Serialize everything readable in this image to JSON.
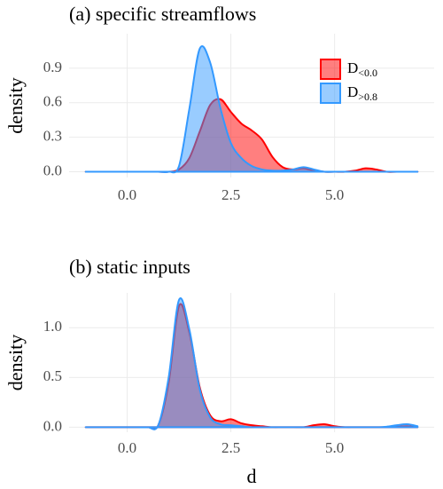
{
  "chart_data": [
    {
      "type": "density",
      "title": "(a) specific streamflows",
      "y_label": "density",
      "xlim": [
        -1.4,
        7.4
      ],
      "xticks": [
        {
          "value": 0,
          "label": "0.0"
        },
        {
          "value": 2.5,
          "label": "2.5"
        },
        {
          "value": 5,
          "label": "5.0"
        }
      ],
      "ylim": [
        -0.05,
        1.2
      ],
      "yticks": [
        {
          "value": 0,
          "label": "0.0"
        },
        {
          "value": 0.3,
          "label": "0.3"
        },
        {
          "value": 0.6,
          "label": "0.6"
        },
        {
          "value": 0.9,
          "label": "0.9"
        }
      ],
      "grid": true,
      "legend": "top-right",
      "x": [
        -1,
        -0.75,
        -0.5,
        -0.25,
        0,
        0.25,
        0.5,
        0.75,
        1,
        1.25,
        1.5,
        1.75,
        2,
        2.25,
        2.5,
        2.75,
        3,
        3.25,
        3.5,
        3.75,
        4,
        4.25,
        4.5,
        4.75,
        5,
        5.25,
        5.5,
        5.75,
        6,
        6.25,
        6.5,
        6.75,
        7
      ],
      "series": [
        {
          "name": "D",
          "name_sub": "<0.0",
          "color": "#ff0000",
          "values": [
            0,
            0,
            0,
            0,
            0,
            0,
            0,
            0,
            0,
            0.02,
            0.12,
            0.35,
            0.58,
            0.63,
            0.52,
            0.42,
            0.36,
            0.28,
            0.13,
            0.04,
            0.02,
            0.03,
            0.01,
            0,
            0,
            0,
            0.01,
            0.03,
            0.02,
            0,
            0,
            0,
            0
          ]
        },
        {
          "name": "D",
          "name_sub": ">0.8",
          "color": "#3399ff",
          "values": [
            0,
            0,
            0,
            0,
            0,
            0,
            0,
            0,
            0,
            0.05,
            0.55,
            1.07,
            0.95,
            0.55,
            0.25,
            0.12,
            0.05,
            0.02,
            0.01,
            0.01,
            0.02,
            0.04,
            0.02,
            0,
            0,
            0,
            0,
            0,
            0,
            0,
            0,
            0,
            0
          ]
        }
      ]
    },
    {
      "type": "density",
      "title": "(b) static inputs",
      "y_label": "density",
      "x_label": "d",
      "xlim": [
        -1.4,
        7.4
      ],
      "xticks": [
        {
          "value": 0,
          "label": "0.0"
        },
        {
          "value": 2.5,
          "label": "2.5"
        },
        {
          "value": 5,
          "label": "5.0"
        }
      ],
      "ylim": [
        -0.05,
        1.35
      ],
      "yticks": [
        {
          "value": 0,
          "label": "0.0"
        },
        {
          "value": 0.5,
          "label": "0.5"
        },
        {
          "value": 1,
          "label": "1.0"
        }
      ],
      "grid": true,
      "x": [
        -1,
        -0.75,
        -0.5,
        -0.25,
        0,
        0.25,
        0.5,
        0.75,
        1,
        1.25,
        1.5,
        1.75,
        2,
        2.25,
        2.5,
        2.75,
        3,
        3.25,
        3.5,
        3.75,
        4,
        4.25,
        4.5,
        4.75,
        5,
        5.25,
        5.5,
        5.75,
        6,
        6.25,
        6.5,
        6.75,
        7
      ],
      "series": [
        {
          "color": "#ff0000",
          "values": [
            0,
            0,
            0,
            0,
            0,
            0,
            0,
            0.02,
            0.45,
            1.22,
            0.95,
            0.4,
            0.12,
            0.06,
            0.08,
            0.04,
            0.02,
            0.01,
            0,
            0,
            0,
            0,
            0.02,
            0.03,
            0.01,
            0,
            0,
            0,
            0,
            0,
            0.005,
            0.01,
            0
          ]
        },
        {
          "color": "#3399ff",
          "values": [
            0,
            0,
            0,
            0,
            0,
            0,
            0,
            0.02,
            0.5,
            1.28,
            0.98,
            0.38,
            0.1,
            0.03,
            0.02,
            0.01,
            0,
            0,
            0,
            0,
            0,
            0,
            0,
            0,
            0,
            0,
            0,
            0,
            0,
            0.005,
            0.02,
            0.03,
            0.01
          ]
        }
      ]
    }
  ]
}
